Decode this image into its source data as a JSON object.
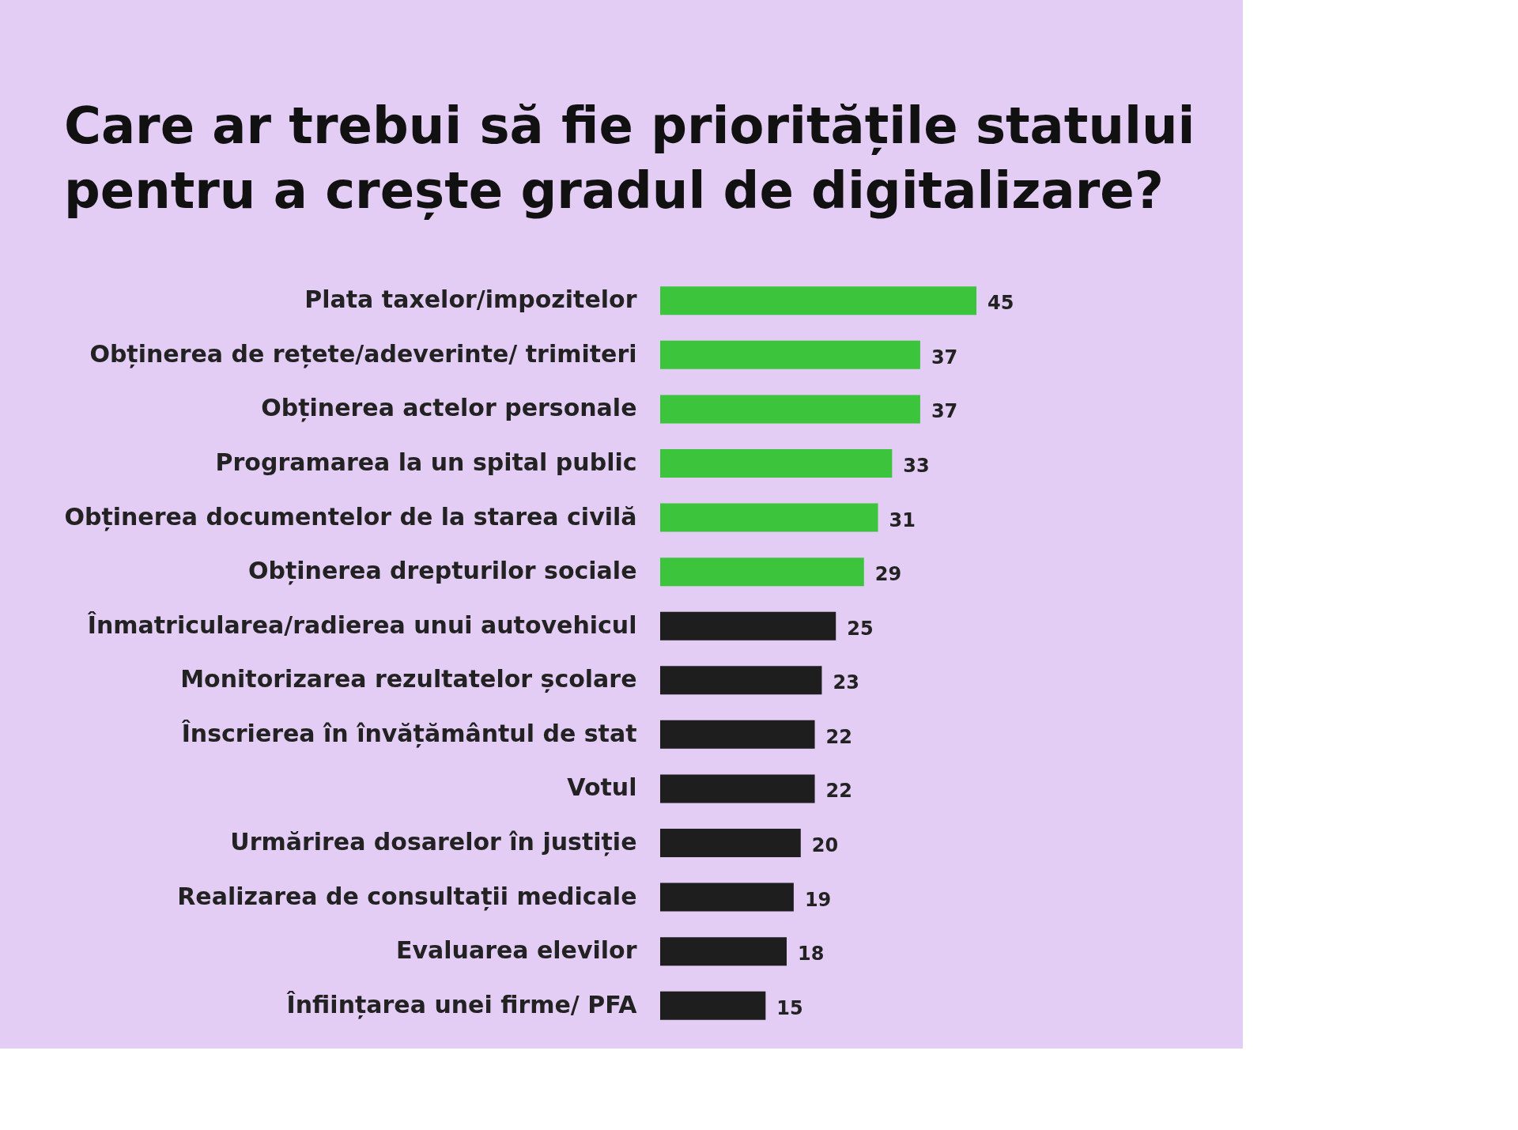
{
  "chart_data": {
    "type": "bar",
    "orientation": "horizontal",
    "title": "Care ar trebui să fie prioritățile statului\npentru a crește gradul de digitalizare?",
    "categories": [
      "Plata taxelor/impozitelor",
      "Obținerea de rețete/adeverinte/ trimiteri",
      "Obținerea actelor personale",
      "Programarea la un spital public",
      "Obținerea documentelor de la starea civilă",
      "Obținerea drepturilor sociale",
      "Înmatricularea/radierea unui autovehicul",
      "Monitorizarea rezultatelor școlare",
      "Înscrierea în învățământul de stat",
      "Votul",
      "Urmărirea dosarelor în justiție",
      "Realizarea de consultații medicale",
      "Evaluarea elevilor",
      "Înființarea unei firme/ PFA"
    ],
    "values": [
      45,
      37,
      37,
      33,
      31,
      29,
      25,
      23,
      22,
      22,
      20,
      19,
      18,
      15
    ],
    "colors": [
      "#3cc43c",
      "#3cc43c",
      "#3cc43c",
      "#3cc43c",
      "#3cc43c",
      "#3cc43c",
      "#1e1e1e",
      "#1e1e1e",
      "#1e1e1e",
      "#1e1e1e",
      "#1e1e1e",
      "#1e1e1e",
      "#1e1e1e",
      "#1e1e1e"
    ],
    "data_labels": true
  }
}
